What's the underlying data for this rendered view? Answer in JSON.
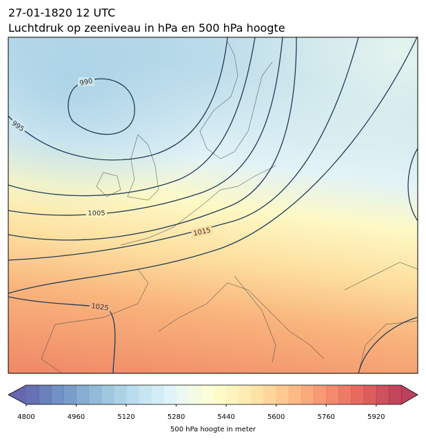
{
  "title": "27-01-1820 12 UTC",
  "subtitle": "Luchtdruk op zeeniveau in hPa en 500 hPa hoogte",
  "contours": [
    {
      "value": 990
    },
    {
      "value": 995
    },
    {
      "value": 1005
    },
    {
      "value": 1015
    },
    {
      "value": 1025
    }
  ],
  "colorbar": {
    "label": "500 hPa hoogte in meter",
    "lim": [
      4800,
      6000
    ],
    "step": 40,
    "ticks": [
      4800,
      4960,
      5120,
      5280,
      5440,
      5600,
      5760,
      5920
    ]
  }
}
